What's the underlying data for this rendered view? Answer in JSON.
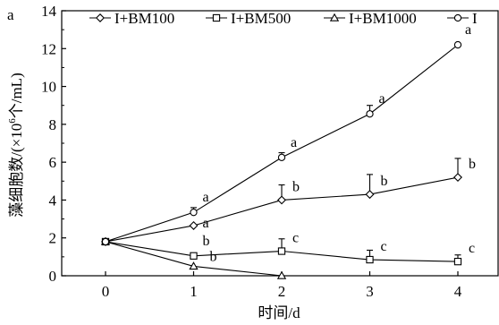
{
  "chart_data": {
    "type": "line",
    "panel_label": "a",
    "xlabel": "时间/d",
    "ylabel": "藻细胞数/(×10⁶个/mL)",
    "ylabel_parts": {
      "prefix": "藻细胞数/(×10",
      "exponent": "6",
      "suffix": "个/mL)"
    },
    "x_ticks": [
      0,
      1,
      2,
      3,
      4
    ],
    "y_ticks": [
      0,
      2,
      4,
      6,
      8,
      10,
      12,
      14
    ],
    "xlim": [
      -0.5,
      4.45
    ],
    "ylim": [
      0,
      14
    ],
    "grid": false,
    "legend_position": "top",
    "series": [
      {
        "name": "I+BM100",
        "marker": "diamond",
        "x": [
          0,
          1,
          2,
          3,
          4
        ],
        "y": [
          1.8,
          2.65,
          4.0,
          4.3,
          5.2
        ],
        "err": [
          0,
          0,
          0.8,
          1.05,
          1.0
        ],
        "labels": [
          "",
          "a",
          "b",
          "b",
          "b"
        ]
      },
      {
        "name": "I+BM500",
        "marker": "square",
        "x": [
          0,
          1,
          2,
          3,
          4
        ],
        "y": [
          1.8,
          1.05,
          1.3,
          0.85,
          0.75
        ],
        "err": [
          0,
          0,
          0.65,
          0.5,
          0.35
        ],
        "labels": [
          "",
          "b",
          "c",
          "c",
          "c"
        ]
      },
      {
        "name": "I+BM1000",
        "marker": "triangle",
        "x": [
          0,
          1,
          2
        ],
        "y": [
          1.8,
          0.5,
          0.0
        ],
        "err": [
          0,
          0,
          0
        ],
        "labels": [
          "",
          "b",
          ""
        ]
      },
      {
        "name": "I",
        "marker": "circle",
        "x": [
          0,
          1,
          2,
          3,
          4
        ],
        "y": [
          1.8,
          3.35,
          6.25,
          8.55,
          12.2
        ],
        "err": [
          0,
          0.25,
          0.25,
          0.45,
          0
        ],
        "labels": [
          "",
          "a",
          "a",
          "a",
          "a"
        ]
      }
    ]
  }
}
